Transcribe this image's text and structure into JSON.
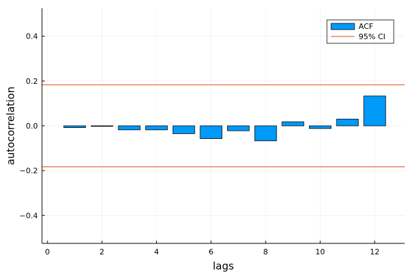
{
  "chart_data": {
    "type": "bar",
    "x": [
      1,
      2,
      3,
      4,
      5,
      6,
      7,
      8,
      9,
      10,
      11,
      12
    ],
    "series": [
      {
        "name": "ACF",
        "values": [
          -0.008,
          -0.002,
          -0.018,
          -0.018,
          -0.035,
          -0.057,
          -0.022,
          -0.067,
          0.018,
          -0.012,
          0.03,
          0.133
        ]
      }
    ],
    "confidence_interval": {
      "name": "95% CI",
      "upper": 0.183,
      "lower": -0.183
    },
    "xlabel": "lags",
    "ylabel": "autocorrelation",
    "xlim": [
      -0.2,
      13.1
    ],
    "ylim": [
      -0.525,
      0.525
    ],
    "xticks": [
      0,
      2,
      4,
      6,
      8,
      10,
      12
    ],
    "yticks": [
      -0.4,
      -0.2,
      0.0,
      0.2,
      0.4
    ],
    "xtick_labels": [
      "0",
      "2",
      "4",
      "6",
      "8",
      "10",
      "12"
    ],
    "ytick_labels": [
      "−0.4",
      "−0.2",
      "0.0",
      "0.2",
      "0.4"
    ],
    "grid": true,
    "legend_position": "top-right",
    "colors": {
      "bar": "#009af9",
      "ci": "#e26f46"
    }
  }
}
